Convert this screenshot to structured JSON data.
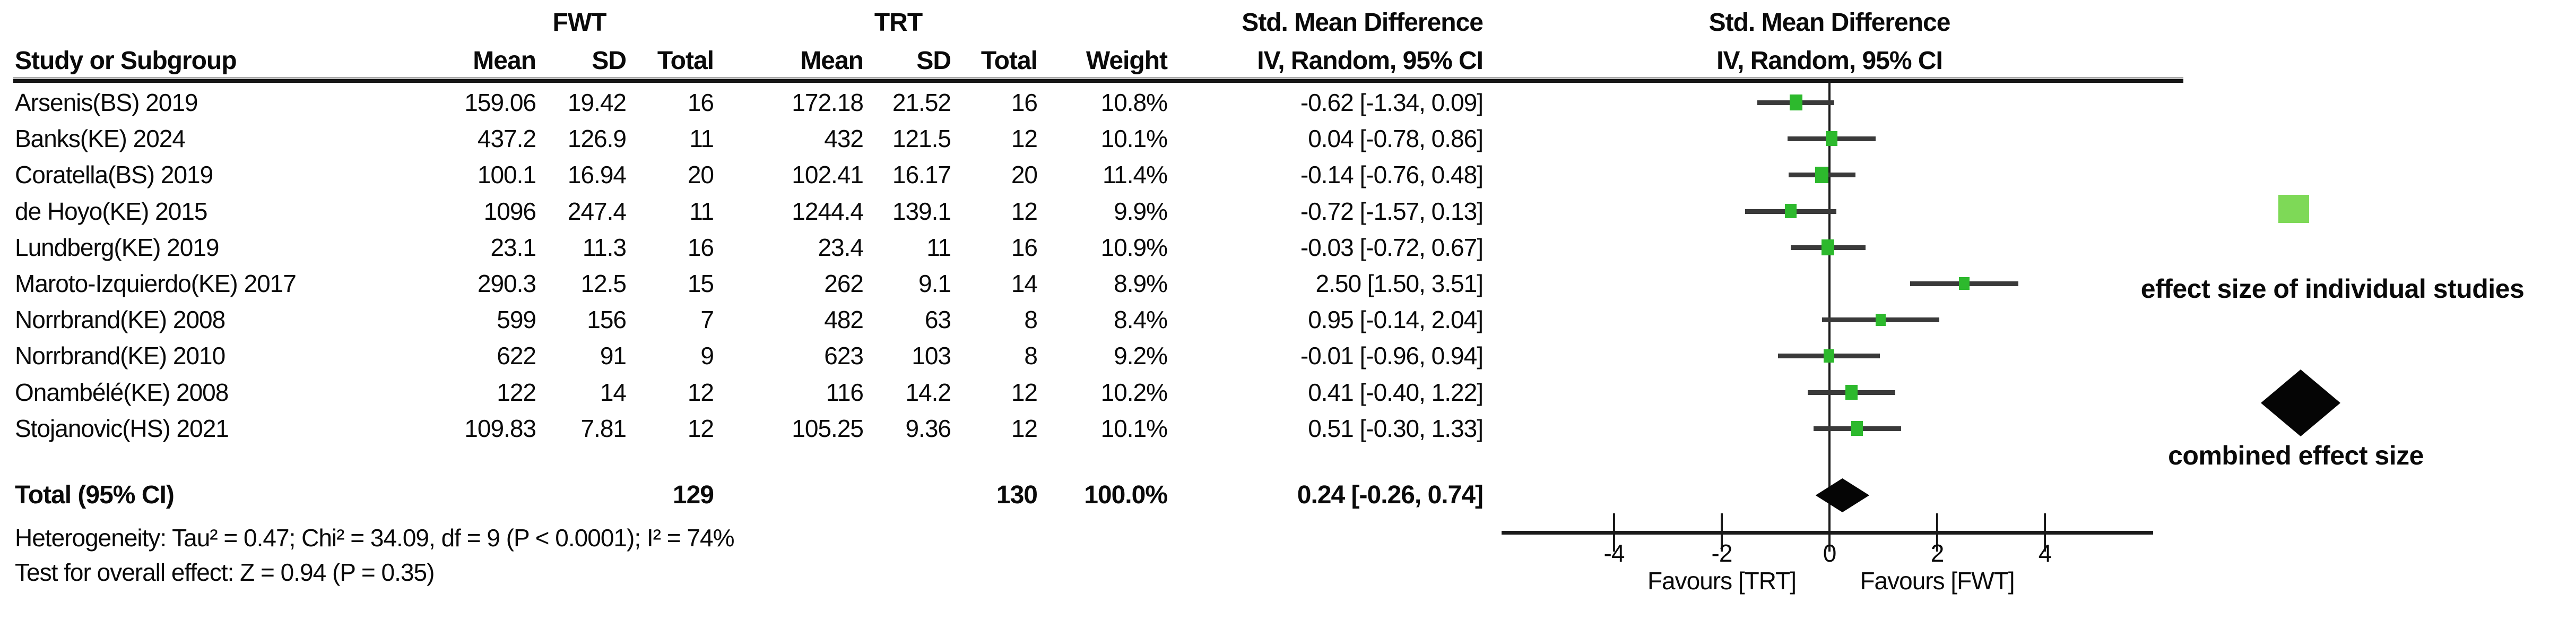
{
  "header": {
    "study_col": "Study or Subgroup",
    "group_fwt": "FWT",
    "group_trt": "TRT",
    "mean": "Mean",
    "sd": "SD",
    "total": "Total",
    "weight": "Weight",
    "smd_text_col": {
      "line1": "Std. Mean Difference",
      "line2": "IV, Random, 95% CI"
    },
    "smd_plot_col": {
      "line1": "Std. Mean Difference",
      "line2": "IV, Random, 95% CI"
    }
  },
  "table": {
    "rows": [
      {
        "study": "Arsenis(BS) 2019",
        "fwt_mean": "159.06",
        "fwt_sd": "19.42",
        "fwt_total": "16",
        "trt_mean": "172.18",
        "trt_sd": "21.52",
        "trt_total": "16",
        "weight": "10.8%",
        "ci": "-0.62 [-1.34, 0.09]"
      },
      {
        "study": "Banks(KE) 2024",
        "fwt_mean": "437.2",
        "fwt_sd": "126.9",
        "fwt_total": "11",
        "trt_mean": "432",
        "trt_sd": "121.5",
        "trt_total": "12",
        "weight": "10.1%",
        "ci": "0.04 [-0.78, 0.86]"
      },
      {
        "study": "Coratella(BS) 2019",
        "fwt_mean": "100.1",
        "fwt_sd": "16.94",
        "fwt_total": "20",
        "trt_mean": "102.41",
        "trt_sd": "16.17",
        "trt_total": "20",
        "weight": "11.4%",
        "ci": "-0.14 [-0.76, 0.48]"
      },
      {
        "study": "de Hoyo(KE) 2015",
        "fwt_mean": "1096",
        "fwt_sd": "247.4",
        "fwt_total": "11",
        "trt_mean": "1244.4",
        "trt_sd": "139.1",
        "trt_total": "12",
        "weight": "9.9%",
        "ci": "-0.72 [-1.57, 0.13]"
      },
      {
        "study": "Lundberg(KE) 2019",
        "fwt_mean": "23.1",
        "fwt_sd": "11.3",
        "fwt_total": "16",
        "trt_mean": "23.4",
        "trt_sd": "11",
        "trt_total": "16",
        "weight": "10.9%",
        "ci": "-0.03 [-0.72, 0.67]"
      },
      {
        "study": "Maroto-Izquierdo(KE) 2017",
        "fwt_mean": "290.3",
        "fwt_sd": "12.5",
        "fwt_total": "15",
        "trt_mean": "262",
        "trt_sd": "9.1",
        "trt_total": "14",
        "weight": "8.9%",
        "ci": "2.50 [1.50, 3.51]"
      },
      {
        "study": "Norrbrand(KE) 2008",
        "fwt_mean": "599",
        "fwt_sd": "156",
        "fwt_total": "7",
        "trt_mean": "482",
        "trt_sd": "63",
        "trt_total": "8",
        "weight": "8.4%",
        "ci": "0.95 [-0.14, 2.04]"
      },
      {
        "study": "Norrbrand(KE) 2010",
        "fwt_mean": "622",
        "fwt_sd": "91",
        "fwt_total": "9",
        "trt_mean": "623",
        "trt_sd": "103",
        "trt_total": "8",
        "weight": "9.2%",
        "ci": "-0.01 [-0.96, 0.94]"
      },
      {
        "study": "Onambélé(KE) 2008",
        "fwt_mean": "122",
        "fwt_sd": "14",
        "fwt_total": "12",
        "trt_mean": "116",
        "trt_sd": "14.2",
        "trt_total": "12",
        "weight": "10.2%",
        "ci": "0.41 [-0.40, 1.22]"
      },
      {
        "study": "Stojanovic(HS) 2021",
        "fwt_mean": "109.83",
        "fwt_sd": "7.81",
        "fwt_total": "12",
        "trt_mean": "105.25",
        "trt_sd": "9.36",
        "trt_total": "12",
        "weight": "10.1%",
        "ci": "0.51 [-0.30, 1.33]"
      }
    ]
  },
  "totals": {
    "label": "Total (95% CI)",
    "fwt_total": "129",
    "trt_total": "130",
    "weight": "100.0%",
    "ci": "0.24 [-0.26, 0.74]"
  },
  "footer": {
    "heterogeneity": "Heterogeneity: Tau² = 0.47; Chi² = 34.09, df = 9 (P < 0.0001); I² = 74%",
    "overall_effect": "Test for overall effect: Z = 0.94 (P = 0.35)"
  },
  "axis_labels": {
    "favours_left": "Favours [TRT]",
    "favours_right": "Favours [FWT]"
  },
  "annotations": {
    "individual": "effect size of individual studies",
    "combined": "combined effect size"
  },
  "colors": {
    "study_marker_green": "#2db92d",
    "legend_green": "#7ed957",
    "diamond_black": "#050505",
    "line_black": "#1a1a1a",
    "ci_bar_gray": "#3a3a3a"
  },
  "chart_data": {
    "type": "forest",
    "title": "Std. Mean Difference, IV, Random, 95% CI",
    "xlabel": "Favours [TRT] | Favours [FWT]",
    "axis": {
      "ticks": [
        -4,
        -2,
        0,
        2,
        4
      ],
      "xlim": [
        -6.1,
        6.0
      ],
      "zero_line": true
    },
    "studies": [
      {
        "name": "Arsenis(BS) 2019",
        "es": -0.62,
        "lo": -1.34,
        "hi": 0.09,
        "weight_pct": 10.8
      },
      {
        "name": "Banks(KE) 2024",
        "es": 0.04,
        "lo": -0.78,
        "hi": 0.86,
        "weight_pct": 10.1
      },
      {
        "name": "Coratella(BS) 2019",
        "es": -0.14,
        "lo": -0.76,
        "hi": 0.48,
        "weight_pct": 11.4
      },
      {
        "name": "de Hoyo(KE) 2015",
        "es": -0.72,
        "lo": -1.57,
        "hi": 0.13,
        "weight_pct": 9.9
      },
      {
        "name": "Lundberg(KE) 2019",
        "es": -0.03,
        "lo": -0.72,
        "hi": 0.67,
        "weight_pct": 10.9
      },
      {
        "name": "Maroto-Izquierdo(KE) 2017",
        "es": 2.5,
        "lo": 1.5,
        "hi": 3.51,
        "weight_pct": 8.9
      },
      {
        "name": "Norrbrand(KE) 2008",
        "es": 0.95,
        "lo": -0.14,
        "hi": 2.04,
        "weight_pct": 8.4
      },
      {
        "name": "Norrbrand(KE) 2010",
        "es": -0.01,
        "lo": -0.96,
        "hi": 0.94,
        "weight_pct": 9.2
      },
      {
        "name": "Onambélé(KE) 2008",
        "es": 0.41,
        "lo": -0.4,
        "hi": 1.22,
        "weight_pct": 10.2
      },
      {
        "name": "Stojanovic(HS) 2021",
        "es": 0.51,
        "lo": -0.3,
        "hi": 1.33,
        "weight_pct": 10.1
      }
    ],
    "total": {
      "name": "Total (95% CI)",
      "es": 0.24,
      "lo": -0.26,
      "hi": 0.74
    },
    "heterogeneity": {
      "tau2": 0.47,
      "chi2": 34.09,
      "df": 9,
      "p": "< 0.0001",
      "i2_pct": 74
    },
    "overall_effect": {
      "z": 0.94,
      "p": 0.35
    }
  }
}
